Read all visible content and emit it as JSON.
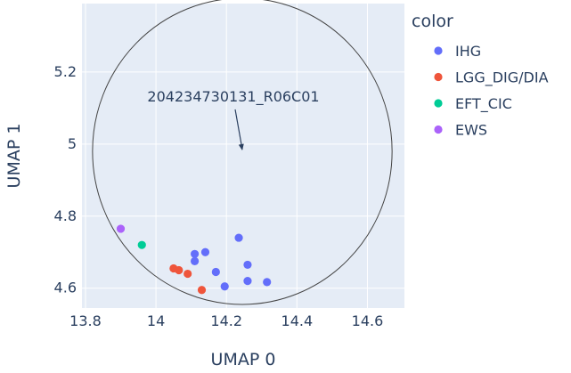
{
  "chart_data": {
    "type": "scatter",
    "xlabel": "UMAP 0",
    "ylabel": "UMAP 1",
    "xlim": [
      13.79,
      14.705
    ],
    "ylim": [
      4.545,
      5.39
    ],
    "x_ticks": [
      "13.8",
      "14",
      "14.2",
      "14.4",
      "14.6"
    ],
    "y_ticks": [
      "4.6",
      "4.8",
      "5",
      "5.2"
    ],
    "grid": true,
    "legend": {
      "title": "color",
      "position": "right"
    },
    "series": [
      {
        "name": "IHG",
        "color": "#636efa",
        "points": [
          {
            "x": 14.11,
            "y": 4.695
          },
          {
            "x": 14.11,
            "y": 4.675
          },
          {
            "x": 14.14,
            "y": 4.7
          },
          {
            "x": 14.17,
            "y": 4.645
          },
          {
            "x": 14.195,
            "y": 4.605
          },
          {
            "x": 14.235,
            "y": 4.74
          },
          {
            "x": 14.26,
            "y": 4.665
          },
          {
            "x": 14.26,
            "y": 4.62
          },
          {
            "x": 14.315,
            "y": 4.617
          }
        ]
      },
      {
        "name": "LGG_DIG/DIA",
        "color": "#ef553b",
        "points": [
          {
            "x": 14.05,
            "y": 4.655
          },
          {
            "x": 14.065,
            "y": 4.65
          },
          {
            "x": 14.09,
            "y": 4.64
          },
          {
            "x": 14.13,
            "y": 4.595
          }
        ]
      },
      {
        "name": "EFT_CIC",
        "color": "#00cc96",
        "points": [
          {
            "x": 13.96,
            "y": 4.72
          }
        ]
      },
      {
        "name": "EWS",
        "color": "#ab63fa",
        "points": [
          {
            "x": 13.9,
            "y": 4.765
          }
        ]
      }
    ],
    "circle": {
      "cx": 14.245,
      "cy": 4.98,
      "r": 0.425
    },
    "annotation": {
      "text": "204234730131_R06C01",
      "x": 14.245,
      "y": 4.98
    }
  }
}
